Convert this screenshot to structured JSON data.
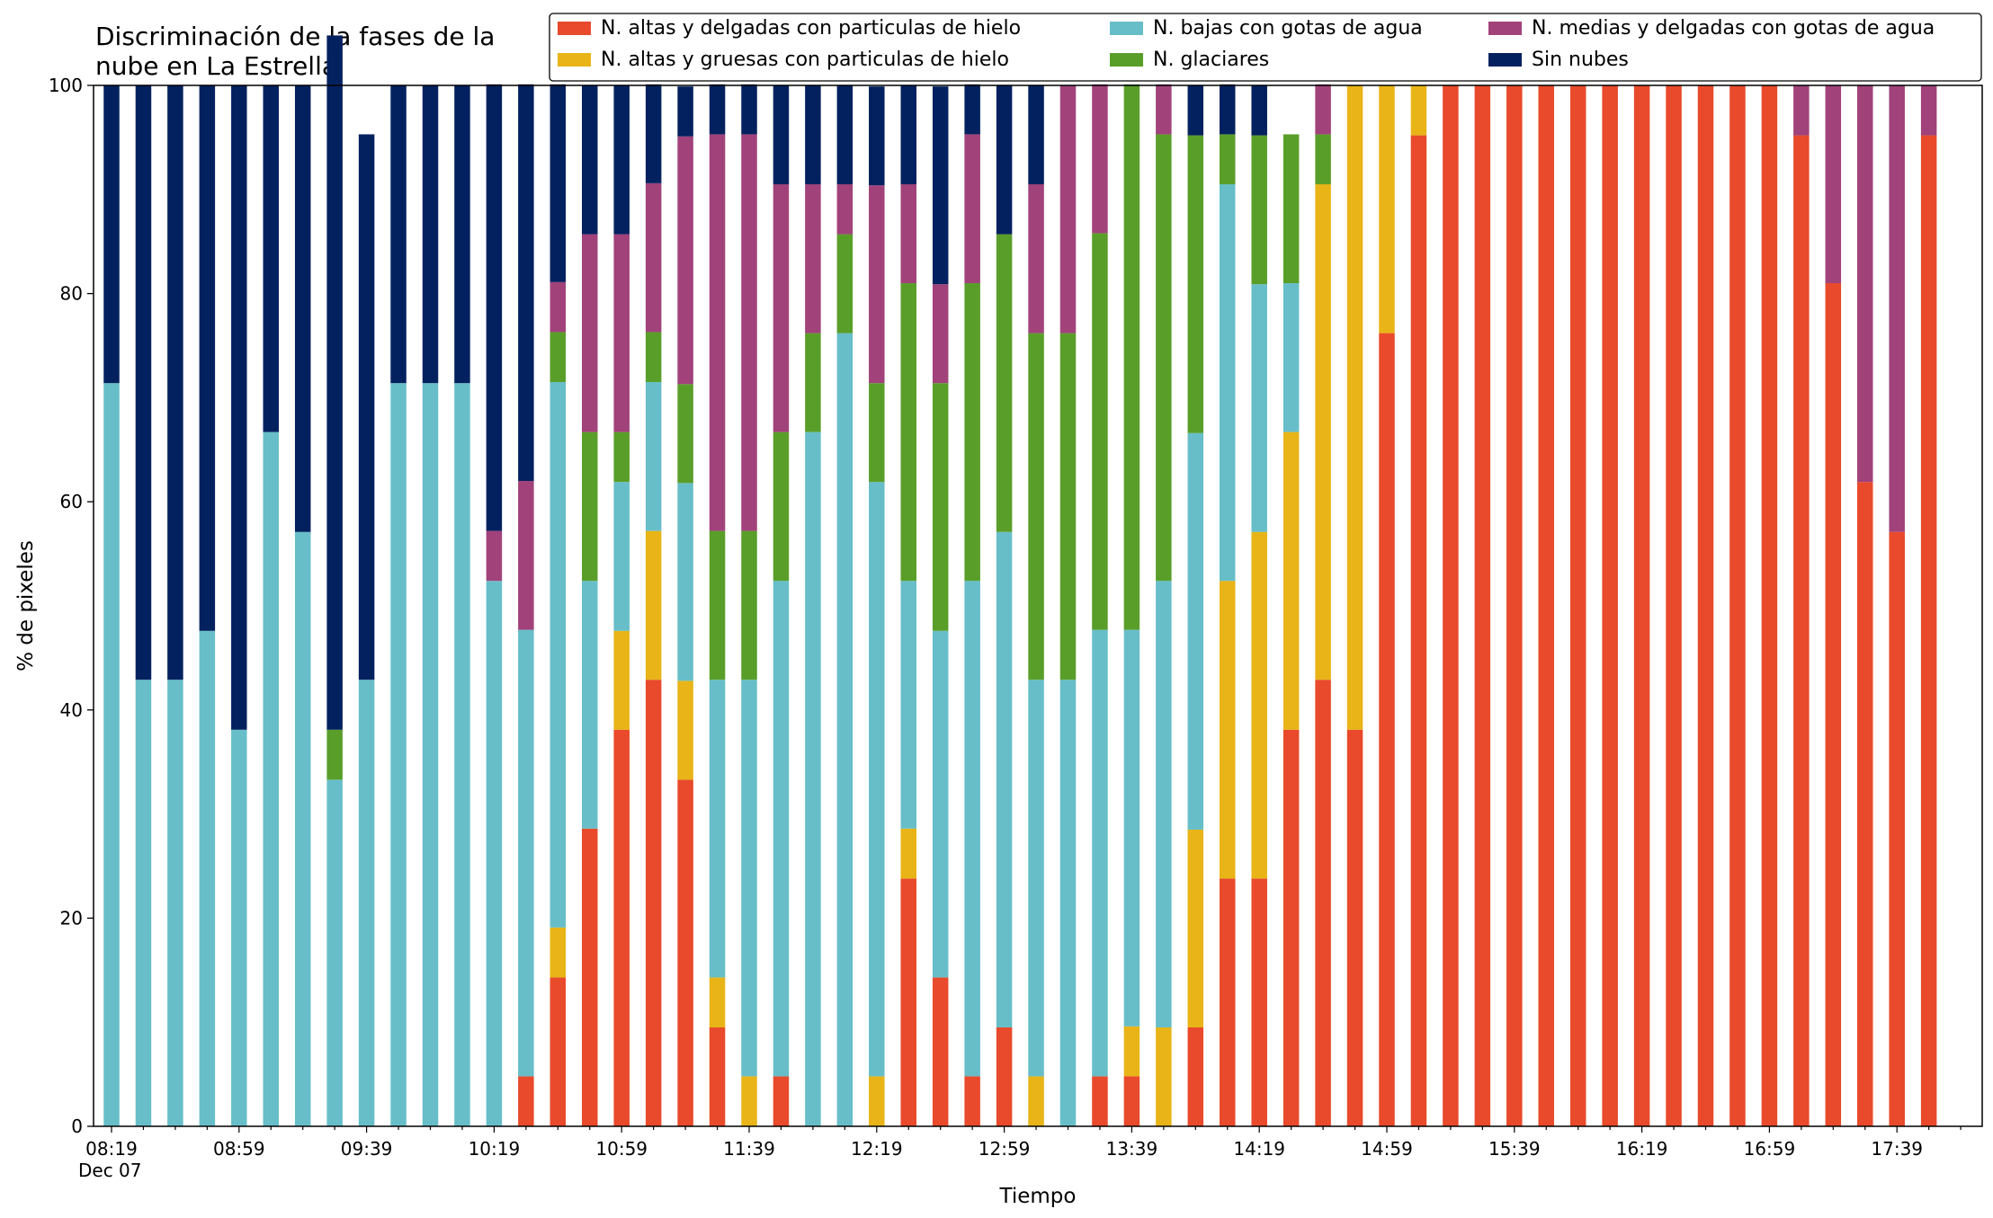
{
  "chart_data": {
    "type": "bar",
    "stacked": true,
    "title_lines": [
      "Discriminación de la fases de la",
      "nube en La Estrella"
    ],
    "xlabel": "Tiempo",
    "ylabel": "% de pixeles",
    "ylim": [
      0,
      100
    ],
    "yticks": [
      0,
      20,
      40,
      60,
      80,
      100
    ],
    "x_tick_labels": [
      "08:19",
      "08:59",
      "09:39",
      "10:19",
      "10:59",
      "11:39",
      "12:19",
      "12:59",
      "13:39",
      "14:19",
      "14:59",
      "15:39",
      "16:19",
      "16:59",
      "17:39"
    ],
    "x_date_label": "Dec 07",
    "grid": false,
    "legend_position": "top-right",
    "categories": [
      "08:19",
      "08:29",
      "08:39",
      "08:49",
      "08:59",
      "09:09",
      "09:19",
      "09:29",
      "09:39",
      "09:49",
      "09:59",
      "10:09",
      "10:19",
      "10:29",
      "10:39",
      "10:49",
      "10:59",
      "11:09",
      "11:19",
      "11:29",
      "11:39",
      "11:49",
      "11:59",
      "12:09",
      "12:19",
      "12:29",
      "12:39",
      "12:49",
      "12:59",
      "13:09",
      "13:19",
      "13:29",
      "13:39",
      "13:49",
      "13:59",
      "14:09",
      "14:19",
      "14:29",
      "14:39",
      "14:49",
      "14:59",
      "15:09",
      "15:19",
      "15:29",
      "15:39",
      "15:49",
      "15:59",
      "16:09",
      "16:19",
      "16:29",
      "16:39",
      "16:49",
      "16:59",
      "17:09",
      "17:19",
      "17:29",
      "17:39",
      "17:49"
    ],
    "series": [
      {
        "name": "N. altas y delgadas con particulas de hielo",
        "color": "#e84a2b",
        "values": [
          0,
          0,
          0,
          0,
          0,
          0,
          0,
          0,
          0,
          0,
          0,
          0,
          0,
          4.8,
          14.3,
          28.6,
          38.1,
          42.9,
          33.3,
          9.5,
          0,
          4.8,
          0,
          0,
          0,
          23.8,
          14.3,
          4.8,
          9.5,
          0,
          0,
          4.8,
          4.8,
          0,
          9.5,
          23.8,
          23.8,
          38.1,
          42.9,
          38.1,
          76.2,
          95.2,
          100,
          100,
          100,
          100,
          100,
          100,
          100,
          100,
          100,
          100,
          100,
          95.2,
          81,
          61.9,
          57.1,
          95.2
        ]
      },
      {
        "name": "N. altas y gruesas con particulas de hielo",
        "color": "#e8b417",
        "values": [
          0,
          0,
          0,
          0,
          0,
          0,
          0,
          0,
          0,
          0,
          0,
          0,
          0,
          0,
          4.8,
          0,
          9.5,
          14.3,
          9.5,
          4.8,
          4.8,
          0,
          0,
          0,
          4.8,
          4.8,
          0,
          0,
          0,
          4.8,
          0,
          0,
          4.8,
          9.5,
          19,
          28.6,
          33.3,
          28.6,
          47.6,
          61.9,
          23.8,
          4.8,
          0,
          0,
          0,
          0,
          0,
          0,
          0,
          0,
          0,
          0,
          0,
          0,
          0,
          0,
          0,
          0
        ]
      },
      {
        "name": "N. bajas con gotas de agua",
        "color": "#67bec8",
        "values": [
          71.4,
          42.9,
          42.9,
          47.6,
          38.1,
          66.7,
          57.1,
          33.3,
          42.9,
          71.4,
          71.4,
          71.4,
          52.4,
          42.9,
          52.4,
          23.8,
          14.3,
          14.3,
          19,
          28.6,
          38.1,
          47.6,
          66.7,
          76.2,
          57.1,
          23.8,
          33.3,
          47.6,
          47.6,
          38.1,
          42.9,
          42.9,
          38.1,
          42.9,
          38.1,
          38.1,
          23.8,
          14.3,
          0,
          0,
          0,
          0,
          0,
          0,
          0,
          0,
          0,
          0,
          0,
          0,
          0,
          0,
          0,
          0,
          0,
          0,
          0,
          0
        ]
      },
      {
        "name": "N. glaciares",
        "color": "#5a9e2a",
        "values": [
          0,
          0,
          0,
          0,
          0,
          0,
          0,
          4.8,
          0,
          0,
          0,
          0,
          0,
          0,
          4.8,
          14.3,
          4.8,
          4.8,
          9.5,
          14.3,
          14.3,
          14.3,
          9.5,
          9.5,
          9.5,
          28.6,
          23.8,
          28.6,
          28.6,
          33.3,
          33.3,
          38.1,
          52.4,
          42.9,
          28.6,
          4.8,
          14.3,
          14.3,
          4.8,
          0,
          0,
          0,
          0,
          0,
          0,
          0,
          0,
          0,
          0,
          0,
          0,
          0,
          0,
          0,
          0,
          0,
          0,
          0
        ]
      },
      {
        "name": "N. medias y delgadas con gotas de agua",
        "color": "#a1427a",
        "values": [
          0,
          0,
          0,
          0,
          0,
          0,
          0,
          0,
          0,
          0,
          0,
          0,
          4.8,
          14.3,
          4.8,
          19,
          19,
          14.3,
          23.8,
          38.1,
          38.1,
          23.8,
          14.3,
          4.8,
          19,
          9.5,
          9.5,
          14.3,
          0,
          14.3,
          23.8,
          14.3,
          0,
          4.8,
          0,
          0,
          0,
          0,
          4.8,
          0,
          0,
          0,
          0,
          0,
          0,
          0,
          0,
          0,
          0,
          0,
          0,
          0,
          0,
          4.8,
          19,
          38.1,
          42.9,
          4.8
        ]
      },
      {
        "name": "Sin nubes",
        "color": "#04215f",
        "values": [
          28.6,
          57.1,
          57.1,
          52.4,
          61.9,
          33.3,
          42.9,
          66.7,
          52.4,
          28.6,
          28.6,
          28.6,
          42.9,
          38.1,
          19,
          14.3,
          14.3,
          9.5,
          4.8,
          4.8,
          4.8,
          9.5,
          9.5,
          9.5,
          9.5,
          9.5,
          19,
          4.8,
          14.3,
          9.5,
          0,
          0,
          0,
          0,
          4.8,
          4.8,
          4.8,
          0,
          0,
          0,
          0,
          0,
          0,
          0,
          0,
          0,
          0,
          0,
          0,
          0,
          0,
          0,
          0,
          0,
          0,
          0,
          0,
          0
        ]
      }
    ]
  }
}
